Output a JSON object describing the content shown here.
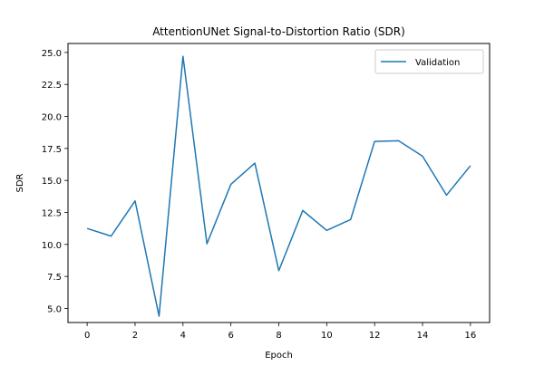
{
  "chart_data": {
    "type": "line",
    "title": "AttentionUNet Signal-to-Distortion Ratio (SDR)",
    "xlabel": "Epoch",
    "ylabel": "SDR",
    "xlim": [
      -0.8,
      16.8
    ],
    "ylim": [
      3.9,
      25.7
    ],
    "xticks": [
      0,
      2,
      4,
      6,
      8,
      10,
      12,
      14,
      16
    ],
    "xtick_labels": [
      "0",
      "2",
      "4",
      "6",
      "8",
      "10",
      "12",
      "14",
      "16"
    ],
    "yticks": [
      5.0,
      7.5,
      10.0,
      12.5,
      15.0,
      17.5,
      20.0,
      22.5,
      25.0
    ],
    "ytick_labels": [
      "5.0",
      "7.5",
      "10.0",
      "12.5",
      "15.0",
      "17.5",
      "20.0",
      "22.5",
      "25.0"
    ],
    "grid": false,
    "legend_position": "top-right",
    "series": [
      {
        "name": "Validation",
        "color": "#1f77b4",
        "x": [
          0,
          1,
          2,
          3,
          4,
          5,
          6,
          7,
          8,
          9,
          10,
          11,
          12,
          13,
          14,
          15,
          16
        ],
        "y": [
          11.25,
          10.65,
          13.4,
          4.4,
          24.7,
          10.05,
          14.7,
          16.35,
          7.95,
          12.65,
          11.1,
          11.95,
          18.05,
          18.1,
          16.9,
          13.85,
          16.15
        ]
      }
    ]
  }
}
